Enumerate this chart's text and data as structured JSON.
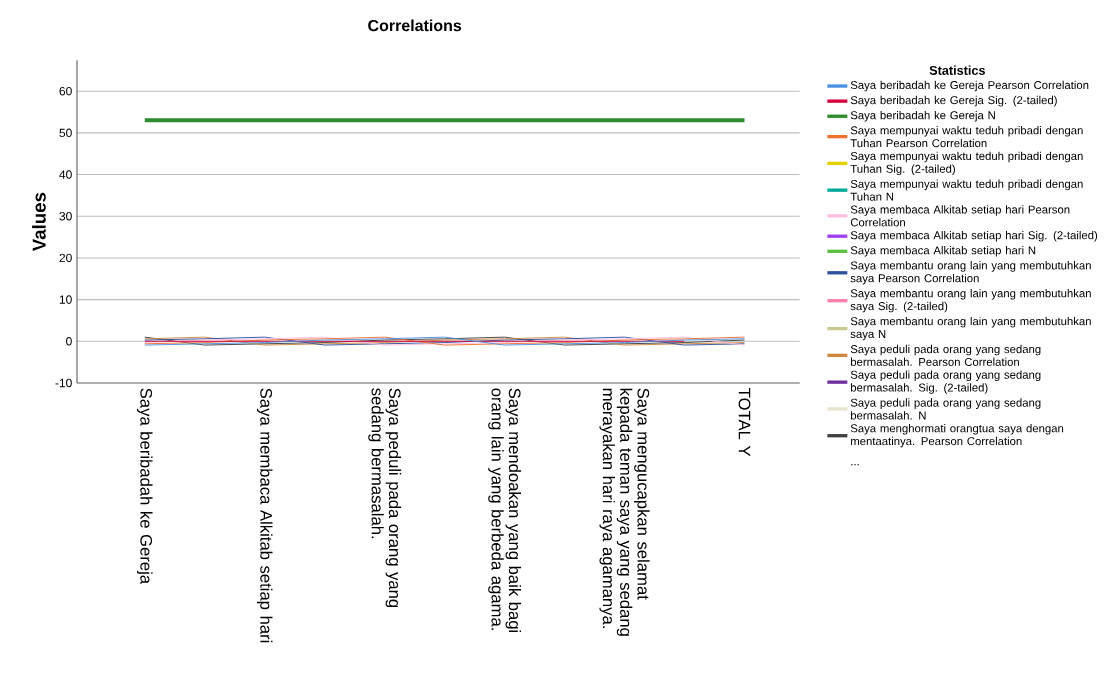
{
  "chart_data": {
    "type": "line",
    "title": "Correlations",
    "ylabel": "Values",
    "legend_title": "Statistics",
    "categories": [
      "Saya beribadah ke Gereja",
      null,
      "Saya membaca Alkitab setiap hari",
      null,
      "Saya peduli pada orang yang sedang bermasalah.",
      null,
      "Saya mendoakan yang baik bagi orang lain yang berbeda agama.",
      null,
      "Saya mengucapkan selamat kepada teman saya yang sedang merayakan hari raya agamanya.",
      null,
      "TOTAL Y"
    ],
    "ylim": [
      -10,
      67.4
    ],
    "yticks": [
      -10,
      0,
      10,
      20,
      30,
      40,
      50,
      60
    ],
    "grid": "y",
    "legend": "right",
    "marker": "none",
    "line_style": "solid",
    "annotations": [
      "..."
    ],
    "series": [
      {
        "name": "Saya beribadah ke Gereja Pearson Correlation",
        "color": "#4a90e2",
        "values": [
          -0.9,
          -0.6,
          -0.3,
          0.3,
          0.6,
          1.0,
          -0.9,
          -0.6,
          -0.3,
          0.3,
          0.6
        ]
      },
      {
        "name": "Saya beribadah ke Gereja Sig. (2-tailed)",
        "color": "#d6003c",
        "values": [
          0,
          0,
          0,
          0,
          0,
          0,
          0,
          0,
          0,
          0,
          null
        ]
      },
      {
        "name": "Saya beribadah ke Gereja N",
        "color": "#2e8b2e",
        "values": [
          53,
          53,
          53,
          53,
          53,
          53,
          53,
          53,
          53,
          53,
          53
        ]
      },
      {
        "name": "Saya mempunyai waktu teduh pribadi dengan Tuhan Pearson Correlation",
        "color": "#f07030",
        "values": [
          -0.6,
          -0.3,
          0.3,
          0.6,
          1.0,
          -0.9,
          -0.6,
          -0.3,
          0.3,
          0.6,
          1.0
        ]
      },
      {
        "name": "Saya mempunyai waktu teduh pribadi dengan Tuhan Sig. (2-tailed)",
        "color": "#e6d000",
        "values": [
          null,
          null,
          null,
          null,
          null,
          null,
          null,
          null,
          null,
          null,
          null
        ]
      },
      {
        "name": "Saya mempunyai waktu teduh pribadi dengan Tuhan N",
        "color": "#00a89a",
        "values": [
          null,
          null,
          null,
          null,
          null,
          null,
          null,
          null,
          null,
          null,
          null
        ]
      },
      {
        "name": "Saya membaca Alkitab setiap hari Pearson Correlation",
        "color": "#ffc0e0",
        "values": [
          -0.3,
          0.3,
          0.6,
          1.0,
          -0.9,
          -0.6,
          -0.3,
          0.3,
          0.6,
          1.0,
          -0.9
        ]
      },
      {
        "name": "Saya membaca Alkitab setiap hari Sig. (2-tailed)",
        "color": "#a040f0",
        "values": [
          null,
          null,
          null,
          null,
          null,
          null,
          null,
          null,
          null,
          null,
          null
        ]
      },
      {
        "name": "Saya membaca Alkitab setiap hari N",
        "color": "#5cc040",
        "values": [
          null,
          null,
          null,
          null,
          null,
          null,
          null,
          null,
          null,
          null,
          null
        ]
      },
      {
        "name": "Saya membantu orang lain yang membutuhkan saya Pearson Correlation",
        "color": "#3050a0",
        "values": [
          0.3,
          0.6,
          1.0,
          -0.9,
          -0.6,
          -0.3,
          0.3,
          0.6,
          1.0,
          -0.9,
          -0.6
        ]
      },
      {
        "name": "Saya membantu orang lain yang membutuhkan saya Sig. (2-tailed)",
        "color": "#ff80b0",
        "values": [
          null,
          null,
          null,
          null,
          null,
          null,
          null,
          null,
          null,
          null,
          null
        ]
      },
      {
        "name": "Saya membantu orang lain yang membutuhkan saya N",
        "color": "#c8c890",
        "values": [
          null,
          null,
          null,
          null,
          null,
          null,
          null,
          null,
          null,
          null,
          null
        ]
      },
      {
        "name": "Saya peduli pada orang yang sedang bermasalah. Pearson Correlation",
        "color": "#d08840",
        "values": [
          0.6,
          1.0,
          -0.9,
          -0.6,
          -0.3,
          0.3,
          0.6,
          1.0,
          -0.9,
          -0.6,
          -0.3
        ]
      },
      {
        "name": "Saya peduli pada orang yang sedang bermasalah. Sig. (2-tailed)",
        "color": "#7030a0",
        "values": [
          null,
          null,
          null,
          null,
          null,
          null,
          null,
          null,
          null,
          null,
          null
        ]
      },
      {
        "name": "Saya peduli pada orang yang sedang bermasalah. N",
        "color": "#e8e4d0",
        "values": [
          null,
          null,
          null,
          null,
          null,
          null,
          null,
          null,
          null,
          null,
          null
        ]
      },
      {
        "name": "Saya menghormati orangtua saya dengan mentaatinya. Pearson Correlation",
        "color": "#404040",
        "values": [
          1.0,
          -0.9,
          -0.6,
          -0.3,
          0.3,
          0.6,
          1.0,
          -0.9,
          -0.6,
          -0.3,
          0.3
        ]
      }
    ]
  }
}
